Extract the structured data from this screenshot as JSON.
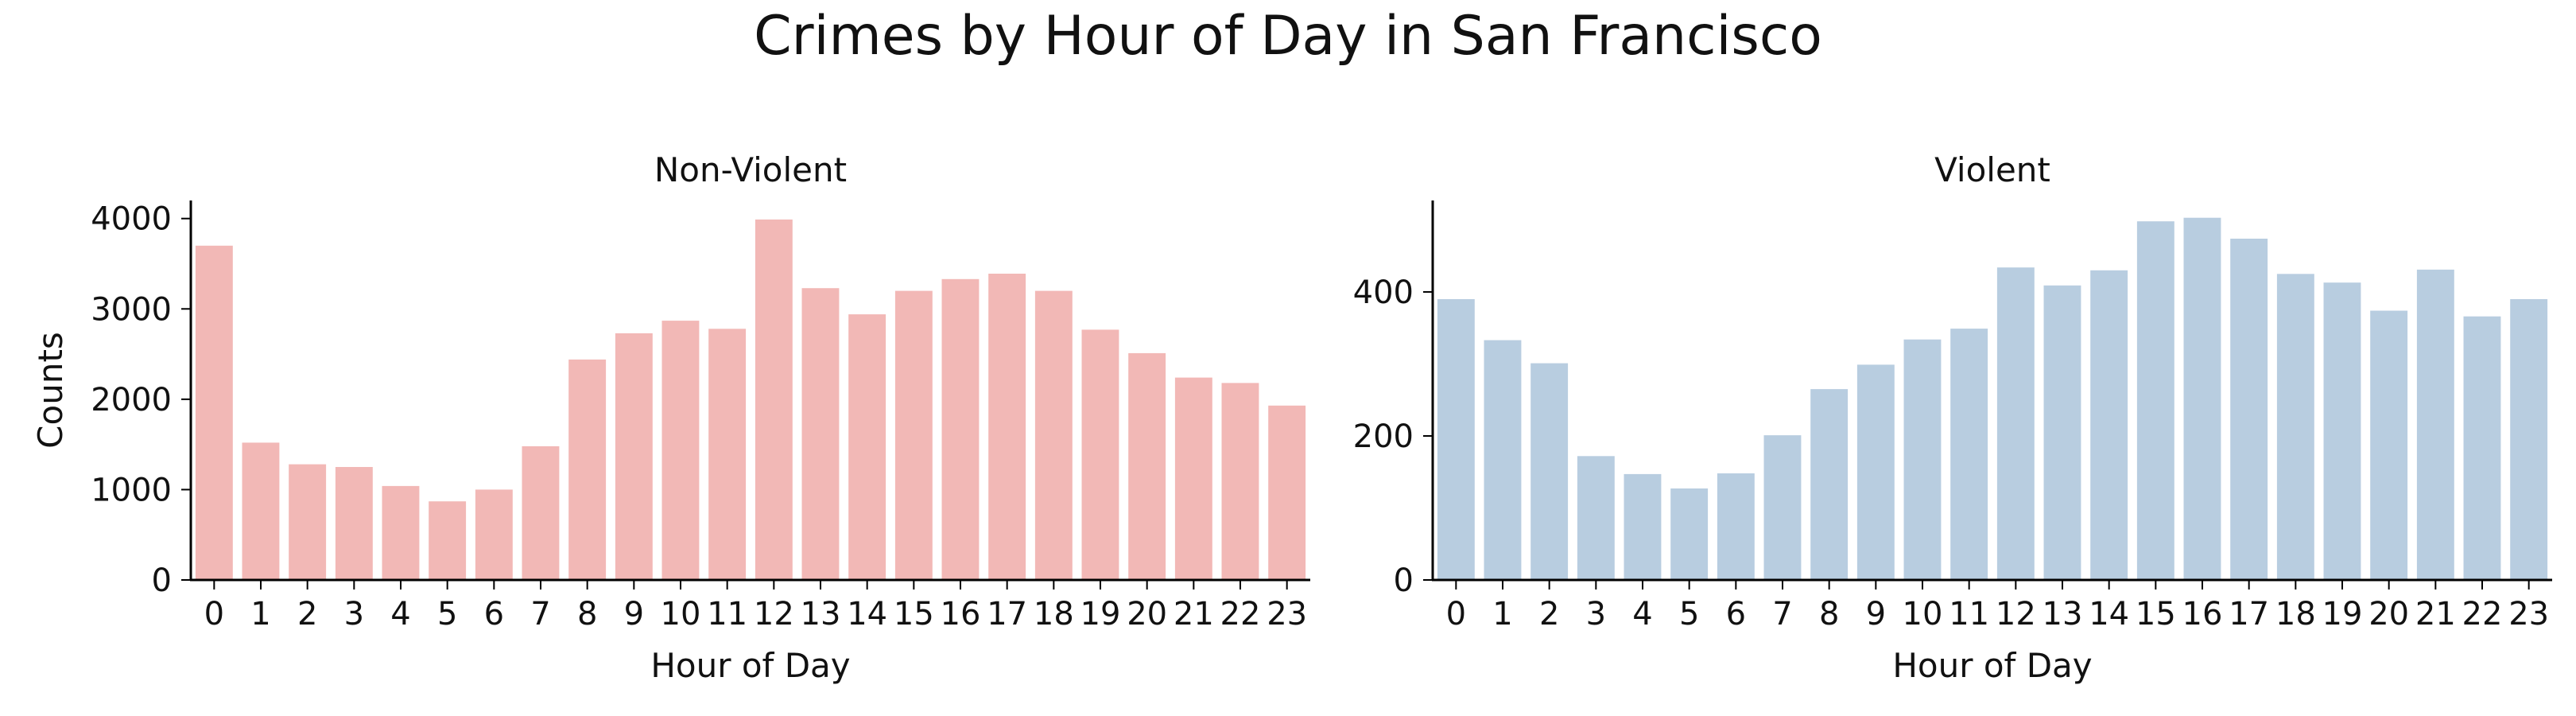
{
  "figure": {
    "suptitle": "Crimes by Hour of Day in San Francisco"
  },
  "chart_data": [
    {
      "type": "bar",
      "title": "Non-Violent",
      "xlabel": "Hour of Day",
      "ylabel": "Counts",
      "categories": [
        "0",
        "1",
        "2",
        "3",
        "4",
        "5",
        "6",
        "7",
        "8",
        "9",
        "10",
        "11",
        "12",
        "13",
        "14",
        "15",
        "16",
        "17",
        "18",
        "19",
        "20",
        "21",
        "22",
        "23"
      ],
      "values": [
        3700,
        1520,
        1280,
        1250,
        1040,
        870,
        1000,
        1480,
        2440,
        2730,
        2870,
        2780,
        3990,
        3230,
        2940,
        3200,
        3330,
        3390,
        3200,
        2770,
        2510,
        2240,
        2180,
        1930
      ],
      "ylim": [
        0,
        4200
      ],
      "yticks": [
        0,
        1000,
        2000,
        3000,
        4000
      ],
      "color": "#f2b8b6",
      "grid": false
    },
    {
      "type": "bar",
      "title": "Violent",
      "xlabel": "Hour of Day",
      "ylabel": "",
      "categories": [
        "0",
        "1",
        "2",
        "3",
        "4",
        "5",
        "6",
        "7",
        "8",
        "9",
        "10",
        "11",
        "12",
        "13",
        "14",
        "15",
        "16",
        "17",
        "18",
        "19",
        "20",
        "21",
        "22",
        "23"
      ],
      "values": [
        390,
        333,
        301,
        172,
        147,
        127,
        148,
        201,
        265,
        299,
        334,
        349,
        434,
        409,
        430,
        498,
        503,
        474,
        425,
        413,
        374,
        431,
        366,
        390
      ],
      "ylim": [
        0,
        527
      ],
      "yticks": [
        0,
        200,
        400
      ],
      "color": "#b8cde0",
      "grid": false
    }
  ]
}
